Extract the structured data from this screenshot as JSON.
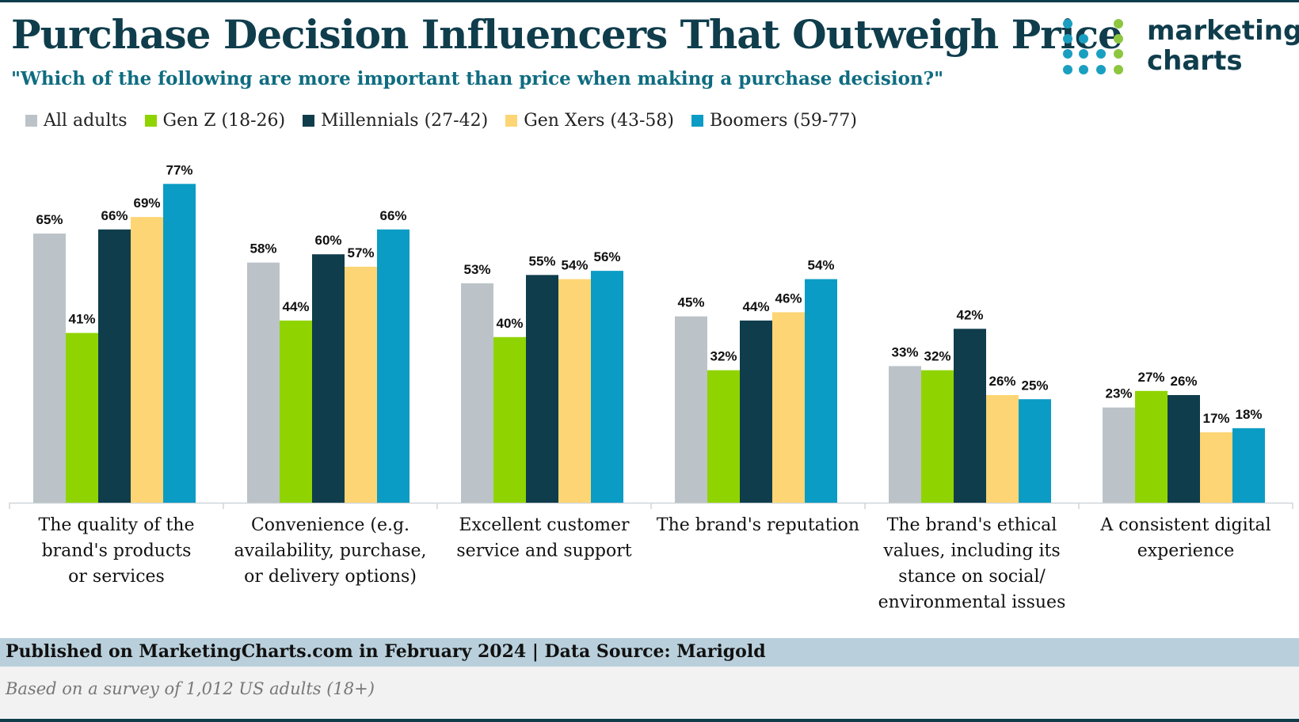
{
  "header": {
    "title": "Purchase Decision Influencers That Outweigh Price",
    "subtitle": "\"Which of the following are more important than price when making a purchase decision?\""
  },
  "logo": {
    "line1": "marketing",
    "line2": "charts",
    "dot_colors": [
      "#1a9fc0",
      "#8dc63f",
      "#0f3d4c"
    ]
  },
  "footer": {
    "source": "Published on MarketingCharts.com in February 2024 | Data Source: Marigold",
    "note": "Based on a survey of 1,012 US adults (18+)"
  },
  "chart_data": {
    "type": "bar",
    "title": "Purchase Decision Influencers That Outweigh Price",
    "categories": [
      [
        "The quality of the",
        "brand's products",
        "or services"
      ],
      [
        "Convenience (e.g.",
        "availability, purchase,",
        "or delivery options)"
      ],
      [
        "Excellent customer",
        "service and support"
      ],
      [
        "The brand's reputation"
      ],
      [
        "The brand's ethical",
        "values, including its",
        "stance on social/",
        "environmental issues"
      ],
      [
        "A consistent digital",
        "experience"
      ]
    ],
    "series": [
      {
        "name": "All adults",
        "color": "#bcc3c8",
        "values": [
          65,
          58,
          53,
          45,
          33,
          23
        ]
      },
      {
        "name": "Gen Z (18-26)",
        "color": "#8fd400",
        "values": [
          41,
          44,
          40,
          32,
          32,
          27
        ]
      },
      {
        "name": "Millennials (27-42)",
        "color": "#0f3d4c",
        "values": [
          66,
          60,
          55,
          44,
          42,
          26
        ]
      },
      {
        "name": "Gen Xers (43-58)",
        "color": "#fdd574",
        "values": [
          69,
          57,
          54,
          46,
          26,
          17
        ]
      },
      {
        "name": "Boomers (59-77)",
        "color": "#0a9cc4",
        "values": [
          77,
          66,
          56,
          54,
          25,
          18
        ]
      }
    ],
    "value_suffix": "%",
    "ylim": [
      0,
      100
    ],
    "grid": false,
    "legend_position": "top-left"
  }
}
